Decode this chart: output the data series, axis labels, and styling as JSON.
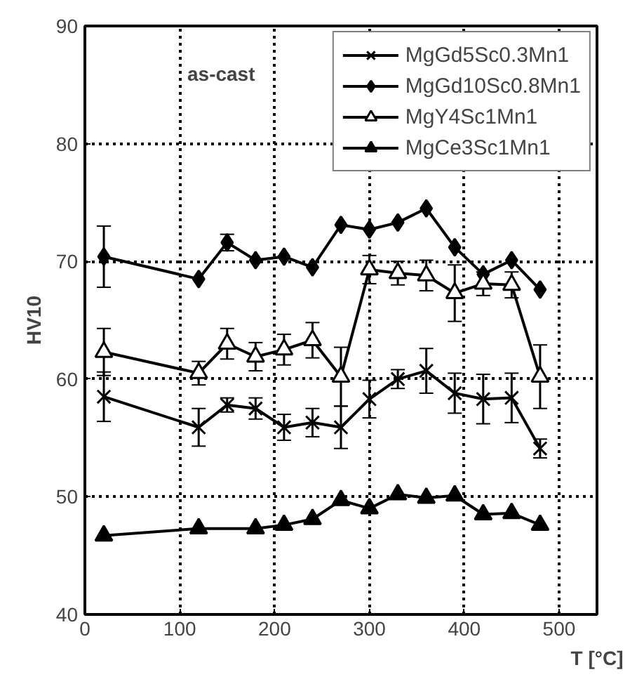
{
  "chart_data": {
    "type": "line",
    "xlabel": "T [°C]",
    "ylabel": "HV10",
    "annotations": [
      "as-cast"
    ],
    "xlim": [
      0,
      540
    ],
    "ylim": [
      40,
      90
    ],
    "xticks": [
      0,
      100,
      200,
      300,
      400,
      500
    ],
    "yticks": [
      40,
      50,
      60,
      70,
      80,
      90
    ],
    "grid": true,
    "legend": "top right",
    "line_style": "solid",
    "series": [
      {
        "name": "MgGd5Sc0.3Mn1",
        "color": "#000000",
        "marker": "cross",
        "x": [
          20,
          120,
          150,
          180,
          210,
          240,
          270,
          300,
          330,
          360,
          390,
          420,
          450,
          480
        ],
        "values": [
          58.5,
          55.9,
          57.8,
          57.5,
          55.9,
          56.3,
          55.9,
          58.3,
          60.0,
          60.7,
          58.8,
          58.3,
          58.4,
          54.1
        ],
        "errors": [
          2.1,
          1.6,
          0.6,
          0.9,
          1.1,
          1.2,
          1.8,
          1.6,
          0.8,
          1.9,
          1.7,
          2.1,
          2.1,
          0.8
        ]
      },
      {
        "name": "MgGd10Sc0.8Mn1",
        "color": "#000000",
        "marker": "diamond",
        "x": [
          20,
          120,
          150,
          180,
          210,
          240,
          270,
          300,
          330,
          360,
          390,
          420,
          450,
          480
        ],
        "values": [
          70.4,
          68.5,
          71.6,
          70.1,
          70.4,
          69.5,
          73.1,
          72.7,
          73.3,
          74.5,
          71.2,
          68.9,
          70.1,
          67.6
        ],
        "errors": [
          2.6,
          null,
          0.7,
          null,
          null,
          null,
          null,
          null,
          null,
          null,
          null,
          null,
          null,
          null
        ]
      },
      {
        "name": "MgY4Sc1Mn1",
        "color": "#000000",
        "marker": "triangle",
        "x": [
          20,
          120,
          150,
          180,
          210,
          240,
          270,
          300,
          330,
          360,
          390,
          420,
          450,
          480
        ],
        "values": [
          62.3,
          60.5,
          63.0,
          61.9,
          62.5,
          63.3,
          60.2,
          69.3,
          69.0,
          68.8,
          67.3,
          68.1,
          68.0,
          60.2
        ],
        "errors": [
          2.0,
          1.0,
          1.3,
          1.2,
          1.3,
          1.5,
          2.5,
          1.2,
          1.0,
          1.3,
          2.4,
          1.0,
          1.1,
          2.7
        ]
      },
      {
        "name": "MgCe3Sc1Mn1",
        "color": "#000000",
        "marker": "triangle",
        "x": [
          20,
          120,
          180,
          210,
          240,
          270,
          300,
          330,
          360,
          390,
          420,
          450,
          480
        ],
        "values": [
          46.7,
          47.3,
          47.3,
          47.6,
          48.1,
          49.7,
          49.0,
          50.2,
          49.9,
          50.1,
          48.5,
          48.6,
          47.6
        ]
      }
    ]
  }
}
